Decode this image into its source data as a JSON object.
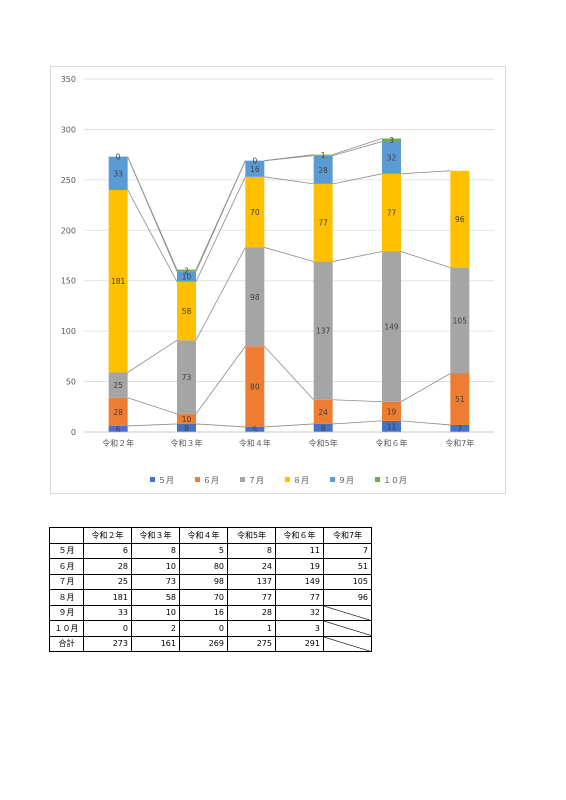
{
  "chart_data": {
    "type": "bar",
    "stacked": true,
    "categories": [
      "令和２年",
      "令和３年",
      "令和４年",
      "令和5年",
      "令和６年",
      "令和7年"
    ],
    "ylim": [
      0,
      350
    ],
    "yticks": [
      0,
      50,
      100,
      150,
      200,
      250,
      300,
      350
    ],
    "series_lines": true,
    "legend_position": "bottom",
    "series": [
      {
        "name": "５月",
        "color": "#4472C4",
        "values": [
          6,
          8,
          5,
          8,
          11,
          7
        ]
      },
      {
        "name": "６月",
        "color": "#ED7D31",
        "values": [
          28,
          10,
          80,
          24,
          19,
          51
        ]
      },
      {
        "name": "７月",
        "color": "#A5A5A5",
        "values": [
          25,
          73,
          98,
          137,
          149,
          105
        ]
      },
      {
        "name": "８月",
        "color": "#FFC000",
        "values": [
          181,
          58,
          70,
          77,
          77,
          96
        ]
      },
      {
        "name": "９月",
        "color": "#5B9BD5",
        "values": [
          33,
          10,
          16,
          28,
          32,
          null
        ]
      },
      {
        "name": "１０月",
        "color": "#70AD47",
        "values": [
          0,
          2,
          0,
          1,
          3,
          null
        ]
      }
    ]
  },
  "table": {
    "header": [
      "令和２年",
      "令和３年",
      "令和４年",
      "令和5年",
      "令和６年",
      "令和7年"
    ],
    "rows": [
      {
        "label": "５月",
        "values": [
          "6",
          "8",
          "5",
          "8",
          "11",
          "7"
        ]
      },
      {
        "label": "６月",
        "values": [
          "28",
          "10",
          "80",
          "24",
          "19",
          "51"
        ]
      },
      {
        "label": "７月",
        "values": [
          "25",
          "73",
          "98",
          "137",
          "149",
          "105"
        ]
      },
      {
        "label": "８月",
        "values": [
          "181",
          "58",
          "70",
          "77",
          "77",
          "96"
        ]
      },
      {
        "label": "９月",
        "values": [
          "33",
          "10",
          "16",
          "28",
          "32",
          ""
        ]
      },
      {
        "label": "１０月",
        "values": [
          "0",
          "2",
          "0",
          "1",
          "3",
          ""
        ]
      },
      {
        "label": "合計",
        "values": [
          "273",
          "161",
          "269",
          "275",
          "291",
          ""
        ]
      }
    ]
  }
}
